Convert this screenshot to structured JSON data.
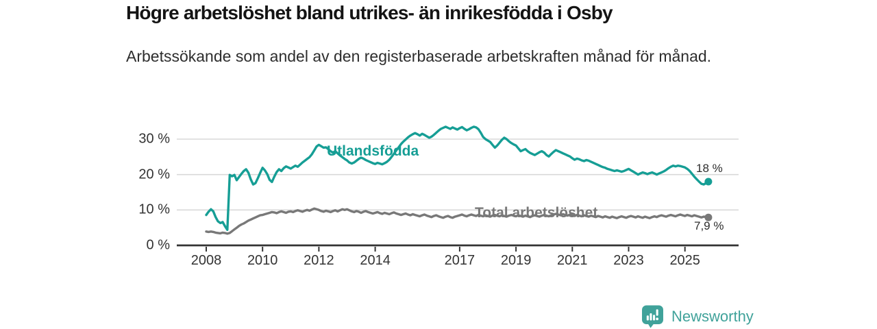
{
  "header": {
    "title": "Högre arbetslöshet bland utrikes- än inrikesfödda i Osby",
    "subtitle": "Arbetssökande som andel av den registerbaserade arbetskraften månad för månad."
  },
  "footer": {
    "brand": "Newsworthy",
    "logo_icon": "bar-chart-speech-bubble-icon",
    "brand_color": "#40a29a"
  },
  "chart_data": {
    "type": "line",
    "title": "Högre arbetslöshet bland utrikes- än inrikesfödda i Osby",
    "subtitle": "Arbetssökande som andel av den registerbaserade arbetskraften månad för månad.",
    "x_unit": "month",
    "x_start": "2008-01",
    "x_end": "2025-11",
    "x_tick_years": [
      2008,
      2010,
      2012,
      2014,
      2017,
      2019,
      2021,
      2023,
      2025
    ],
    "x_tick_labels": [
      "2008",
      "2010",
      "2012",
      "2014",
      "2017",
      "2019",
      "2021",
      "2023",
      "2025"
    ],
    "y_ticks": [
      0,
      10,
      20,
      30
    ],
    "y_tick_labels": [
      "0 %",
      "10 %",
      "20 %",
      "30 %"
    ],
    "ylim": [
      0,
      35
    ],
    "grid": "horizontal",
    "colors": {
      "grid": "#d8d8d8",
      "axis": "#333333",
      "tick_text": "#333333"
    },
    "series": [
      {
        "name": "Utlandsfödda",
        "color": "#169e95",
        "end_label": "18 %",
        "end_value": 18,
        "values": [
          8.6,
          9.5,
          10.2,
          9.6,
          8.0,
          6.8,
          6.3,
          6.6,
          5.4,
          4.4,
          19.9,
          19.5,
          19.9,
          18.4,
          19.3,
          20.2,
          21.0,
          21.5,
          20.5,
          18.6,
          17.2,
          17.6,
          19.0,
          20.5,
          21.9,
          21.2,
          20.1,
          18.5,
          17.9,
          19.4,
          20.7,
          21.5,
          21.0,
          21.8,
          22.3,
          22.0,
          21.7,
          22.1,
          22.5,
          22.2,
          22.8,
          23.4,
          23.9,
          24.4,
          24.9,
          25.7,
          26.8,
          27.9,
          28.4,
          28.0,
          27.6,
          27.7,
          27.2,
          26.6,
          26.2,
          26.6,
          26.0,
          25.4,
          24.9,
          24.4,
          24.0,
          23.4,
          23.1,
          23.4,
          23.9,
          24.4,
          24.8,
          24.5,
          24.1,
          23.8,
          23.5,
          23.2,
          23.0,
          23.3,
          23.1,
          22.9,
          23.2,
          23.6,
          24.2,
          25.0,
          25.9,
          26.8,
          27.7,
          28.6,
          29.3,
          29.9,
          30.5,
          31.0,
          31.4,
          31.7,
          31.4,
          31.0,
          31.5,
          31.2,
          30.8,
          30.4,
          30.7,
          31.2,
          31.8,
          32.4,
          32.9,
          33.2,
          33.5,
          33.2,
          32.9,
          33.3,
          33.0,
          32.7,
          33.1,
          33.4,
          32.9,
          32.5,
          32.8,
          33.2,
          33.5,
          33.3,
          32.8,
          31.8,
          30.6,
          30.0,
          29.6,
          29.2,
          28.4,
          27.6,
          28.2,
          29.0,
          29.8,
          30.4,
          30.0,
          29.4,
          28.9,
          28.5,
          28.2,
          27.4,
          26.6,
          26.9,
          27.2,
          26.6,
          26.1,
          25.8,
          25.5,
          25.9,
          26.3,
          26.6,
          26.2,
          25.5,
          25.1,
          25.8,
          26.4,
          26.9,
          26.6,
          26.3,
          26.0,
          25.7,
          25.4,
          25.1,
          24.6,
          24.2,
          24.5,
          24.3,
          24.0,
          23.8,
          24.1,
          23.9,
          23.6,
          23.3,
          23.0,
          22.7,
          22.4,
          22.1,
          21.9,
          21.6,
          21.4,
          21.2,
          21.0,
          21.2,
          21.0,
          20.8,
          21.0,
          21.3,
          21.6,
          21.2,
          20.8,
          20.4,
          20.0,
          20.3,
          20.6,
          20.4,
          20.1,
          20.4,
          20.6,
          20.3,
          20.0,
          20.3,
          20.6,
          20.9,
          21.3,
          21.8,
          22.2,
          22.5,
          22.3,
          22.5,
          22.4,
          22.2,
          22.0,
          21.6,
          21.0,
          20.2,
          19.4,
          18.7,
          18.0,
          17.4,
          17.2,
          17.6,
          18.0
        ]
      },
      {
        "name": "Total arbetslöshet",
        "color": "#787878",
        "end_label": "7,9 %",
        "end_value": 7.9,
        "values": [
          3.9,
          3.8,
          3.9,
          3.8,
          3.6,
          3.5,
          3.4,
          3.6,
          3.5,
          3.3,
          3.5,
          4.0,
          4.5,
          5.0,
          5.5,
          5.9,
          6.2,
          6.6,
          7.0,
          7.3,
          7.6,
          7.9,
          8.2,
          8.5,
          8.6,
          8.8,
          9.0,
          9.2,
          9.4,
          9.3,
          9.1,
          9.4,
          9.6,
          9.4,
          9.2,
          9.5,
          9.6,
          9.4,
          9.7,
          9.9,
          9.7,
          9.5,
          9.8,
          10.0,
          9.8,
          10.1,
          10.4,
          10.2,
          10.0,
          9.7,
          9.5,
          9.8,
          9.6,
          9.4,
          9.7,
          9.9,
          9.6,
          9.9,
          10.2,
          10.0,
          10.2,
          9.9,
          9.6,
          9.4,
          9.7,
          9.5,
          9.2,
          9.5,
          9.7,
          9.4,
          9.2,
          9.0,
          9.2,
          9.4,
          9.1,
          8.9,
          9.2,
          9.0,
          8.8,
          9.1,
          9.3,
          9.0,
          8.8,
          8.6,
          8.8,
          9.0,
          8.7,
          8.5,
          8.8,
          8.6,
          8.4,
          8.2,
          8.5,
          8.7,
          8.4,
          8.2,
          8.0,
          8.3,
          8.5,
          8.2,
          8.0,
          7.8,
          8.1,
          8.3,
          8.0,
          7.8,
          8.1,
          8.3,
          8.5,
          8.7,
          8.4,
          8.2,
          8.5,
          8.7,
          8.5,
          8.3,
          8.6,
          8.4,
          8.2,
          8.5,
          8.3,
          8.1,
          8.4,
          8.6,
          8.4,
          8.2,
          8.5,
          8.3,
          8.1,
          8.4,
          8.6,
          8.4,
          8.2,
          8.5,
          8.3,
          8.1,
          8.4,
          8.2,
          8.0,
          8.3,
          8.5,
          8.3,
          8.1,
          8.4,
          8.6,
          8.4,
          8.2,
          8.5,
          8.7,
          8.9,
          8.7,
          8.5,
          8.8,
          8.6,
          8.4,
          8.7,
          8.5,
          8.3,
          8.6,
          8.4,
          8.2,
          8.5,
          8.3,
          8.1,
          8.4,
          8.2,
          8.0,
          8.3,
          8.1,
          7.9,
          8.2,
          8.0,
          7.8,
          8.1,
          7.9,
          7.7,
          8.0,
          8.2,
          8.0,
          7.8,
          8.1,
          8.3,
          8.1,
          7.9,
          8.2,
          8.0,
          7.8,
          8.1,
          7.9,
          7.7,
          8.0,
          8.2,
          8.0,
          8.3,
          8.5,
          8.3,
          8.1,
          8.4,
          8.6,
          8.4,
          8.2,
          8.5,
          8.7,
          8.5,
          8.3,
          8.6,
          8.4,
          8.2,
          8.5,
          8.3,
          8.1,
          7.9,
          8.1,
          8.0,
          7.9
        ]
      }
    ]
  }
}
